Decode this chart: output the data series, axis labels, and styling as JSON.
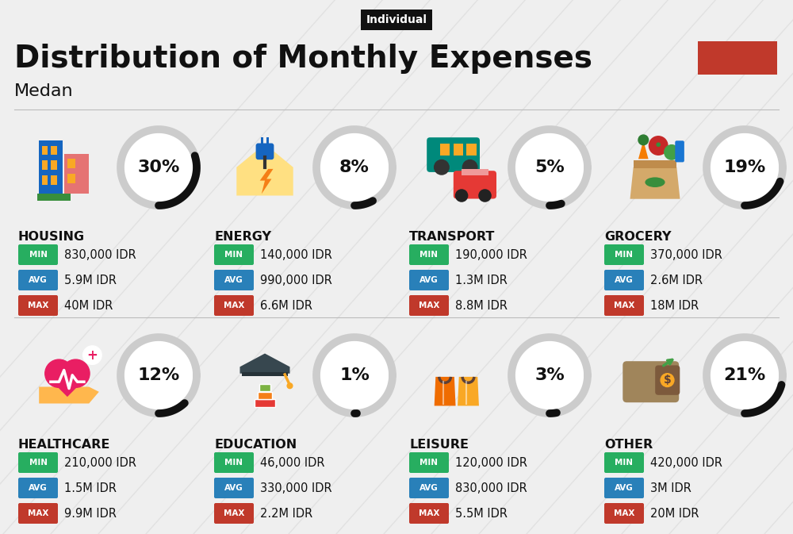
{
  "title": "Distribution of Monthly Expenses",
  "subtitle": "Medan",
  "tag": "Individual",
  "bg_color": "#efefef",
  "red_box_color": "#c0392b",
  "categories": [
    {
      "name": "HOUSING",
      "pct": 30,
      "row": 0,
      "col": 0,
      "min": "830,000 IDR",
      "avg": "5.9M IDR",
      "max": "40M IDR"
    },
    {
      "name": "ENERGY",
      "pct": 8,
      "row": 0,
      "col": 1,
      "min": "140,000 IDR",
      "avg": "990,000 IDR",
      "max": "6.6M IDR"
    },
    {
      "name": "TRANSPORT",
      "pct": 5,
      "row": 0,
      "col": 2,
      "min": "190,000 IDR",
      "avg": "1.3M IDR",
      "max": "8.8M IDR"
    },
    {
      "name": "GROCERY",
      "pct": 19,
      "row": 0,
      "col": 3,
      "min": "370,000 IDR",
      "avg": "2.6M IDR",
      "max": "18M IDR"
    },
    {
      "name": "HEALTHCARE",
      "pct": 12,
      "row": 1,
      "col": 0,
      "min": "210,000 IDR",
      "avg": "1.5M IDR",
      "max": "9.9M IDR"
    },
    {
      "name": "EDUCATION",
      "pct": 1,
      "row": 1,
      "col": 1,
      "min": "46,000 IDR",
      "avg": "330,000 IDR",
      "max": "2.2M IDR"
    },
    {
      "name": "LEISURE",
      "pct": 3,
      "row": 1,
      "col": 2,
      "min": "120,000 IDR",
      "avg": "830,000 IDR",
      "max": "5.5M IDR"
    },
    {
      "name": "OTHER",
      "pct": 21,
      "row": 1,
      "col": 3,
      "min": "420,000 IDR",
      "avg": "3M IDR",
      "max": "20M IDR"
    }
  ],
  "min_color": "#27ae60",
  "avg_color": "#2980b9",
  "max_color": "#c0392b",
  "text_color": "#111111",
  "circle_gray": "#cccccc",
  "circle_dark": "#111111",
  "circle_bg": "#ffffff"
}
